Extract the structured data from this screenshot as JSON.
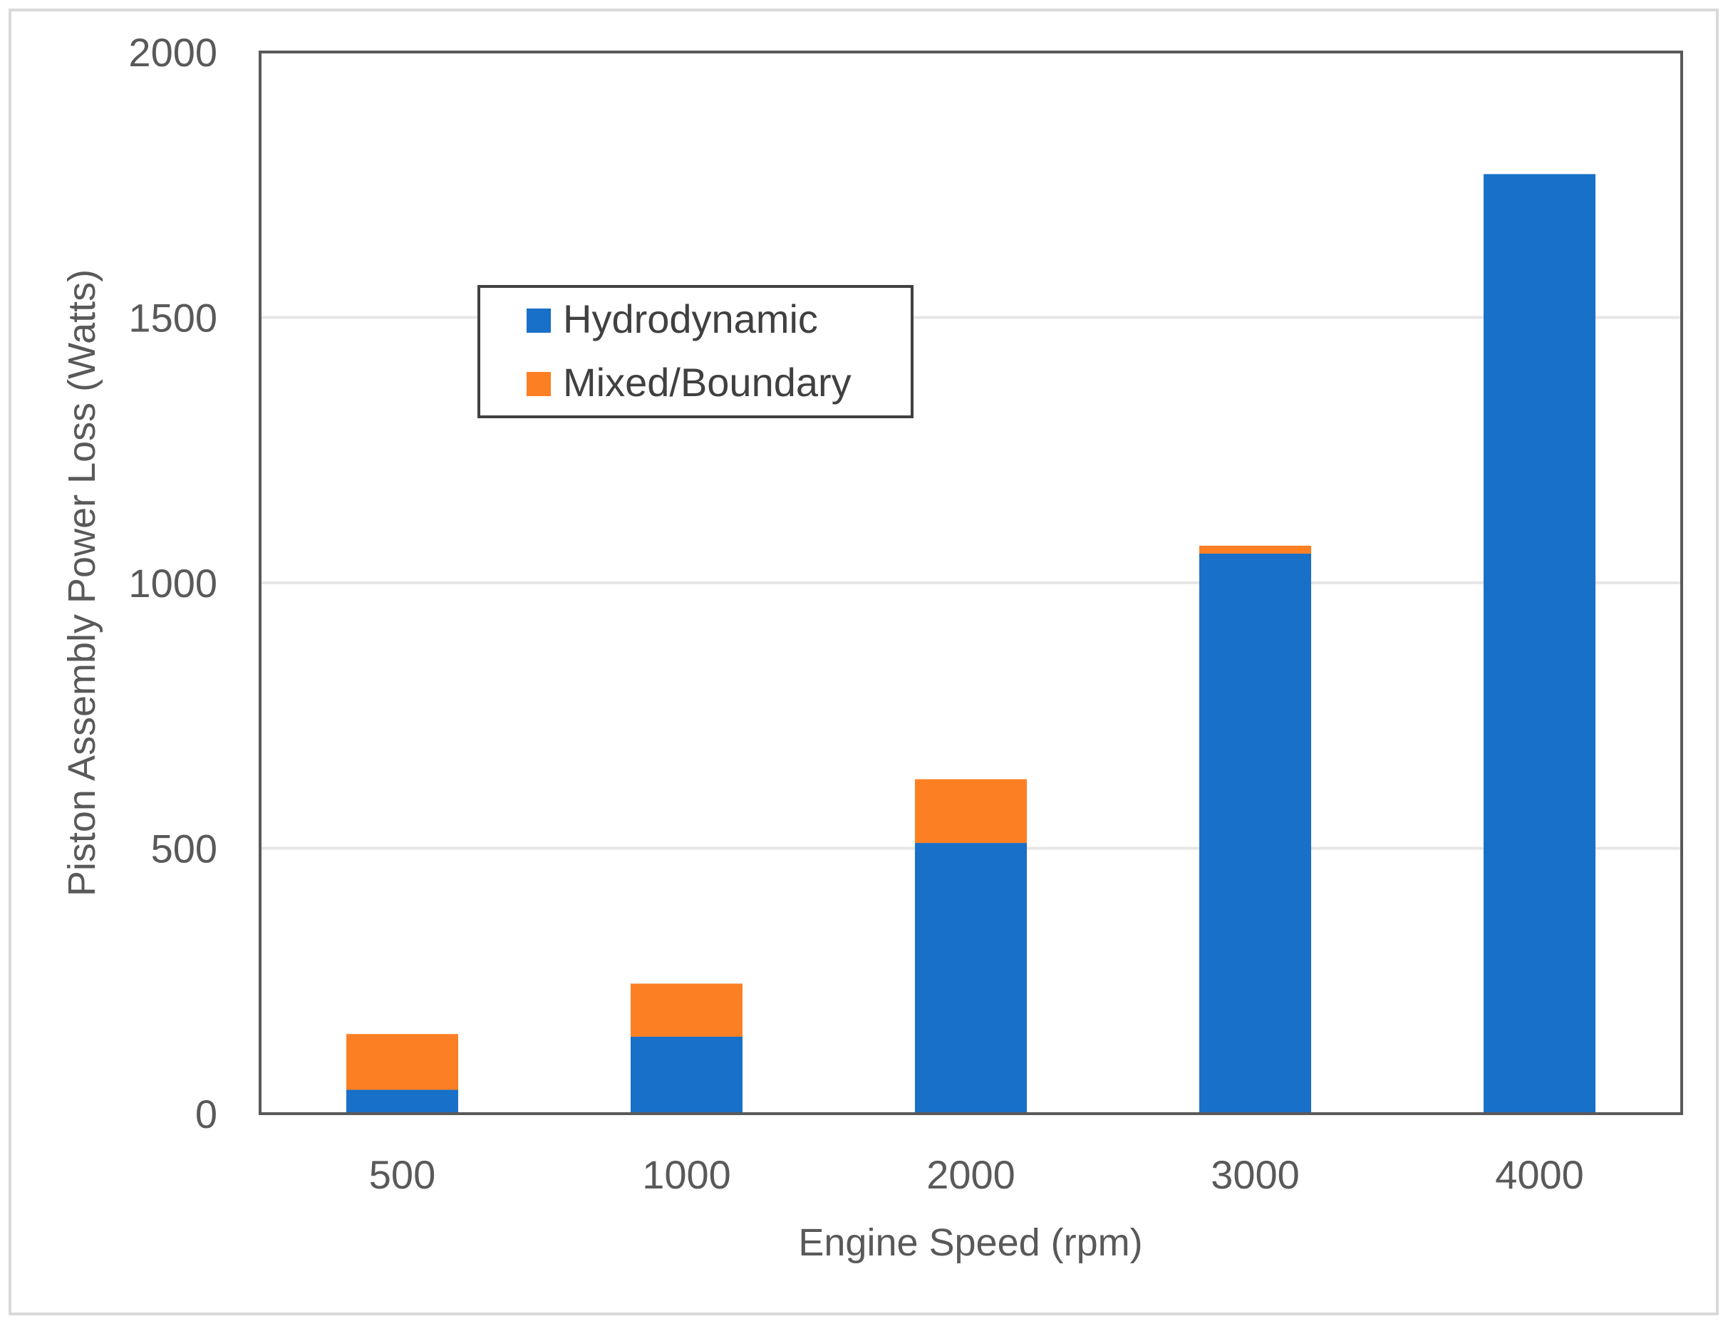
{
  "chart_data": {
    "type": "bar",
    "stacked": true,
    "title": "",
    "xlabel": "Engine Speed (rpm)",
    "ylabel": "Piston Assembly Power Loss (Watts)",
    "categories": [
      "500",
      "1000",
      "2000",
      "3000",
      "4000"
    ],
    "series": [
      {
        "name": "Hydrodynamic",
        "values": [
          45,
          145,
          510,
          1055,
          1770
        ],
        "color": "#1870C8"
      },
      {
        "name": "Mixed/Boundary",
        "values": [
          105,
          100,
          120,
          15,
          0
        ],
        "color": "#FD7F23"
      }
    ],
    "ylim": [
      0,
      2000
    ],
    "yticks": [
      "0",
      "500",
      "1000",
      "1500",
      "2000"
    ],
    "grid": true,
    "legend": "upper-left"
  },
  "colors": {
    "gridline": "#E6E6E6",
    "frame": "#595959",
    "outer_border": "#D9D9D9"
  }
}
